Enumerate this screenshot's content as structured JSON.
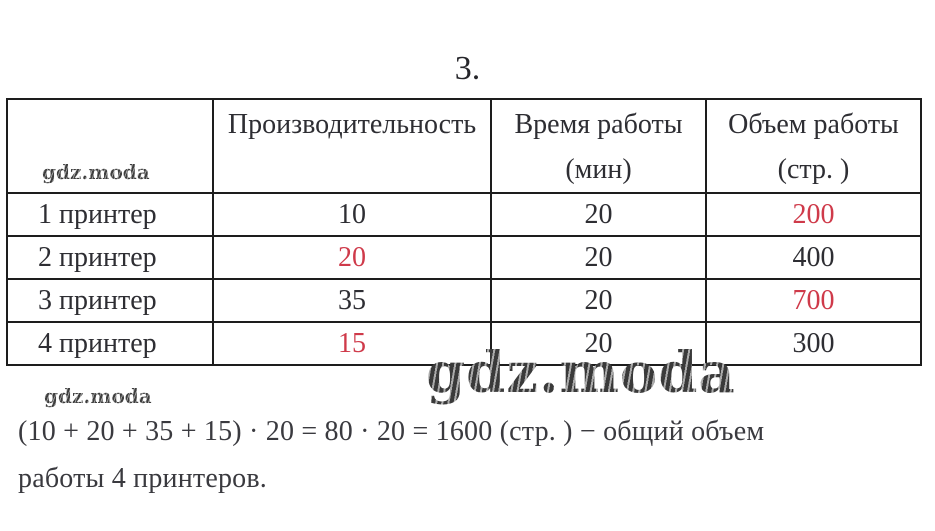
{
  "page_title": "3.",
  "watermark": {
    "brand": "gdz.moda"
  },
  "table": {
    "header": {
      "corner": "",
      "productivity": "Производительность",
      "time_line1": "Время работы",
      "time_line2": "(мин)",
      "volume_line1": "Объем работы",
      "volume_line2": "(стр. )"
    },
    "rows": [
      {
        "label": "1 принтер",
        "productivity": "10",
        "time": "20",
        "volume": "200"
      },
      {
        "label": "2 принтер",
        "productivity": "20",
        "time": "20",
        "volume": "400"
      },
      {
        "label": "3 принтер",
        "productivity": "35",
        "time": "20",
        "volume": "700"
      },
      {
        "label": "4 принтер",
        "productivity": "15",
        "time": "20",
        "volume": "300"
      }
    ],
    "red_highlighted_values": [
      "rows.0.volume",
      "rows.1.productivity",
      "rows.2.volume",
      "rows.3.productivity"
    ]
  },
  "solution": {
    "line1": "(10 + 20 + 35 + 15) · 20 = 80 · 20 = 1600 (стр. ) − общий объем",
    "line2": "работы 4 принтеров."
  },
  "colors": {
    "highlight_red": "#cf3a4a",
    "text": "#2e2e33",
    "border": "#1d1d1d",
    "watermark_gray": "#4a4a4a"
  }
}
